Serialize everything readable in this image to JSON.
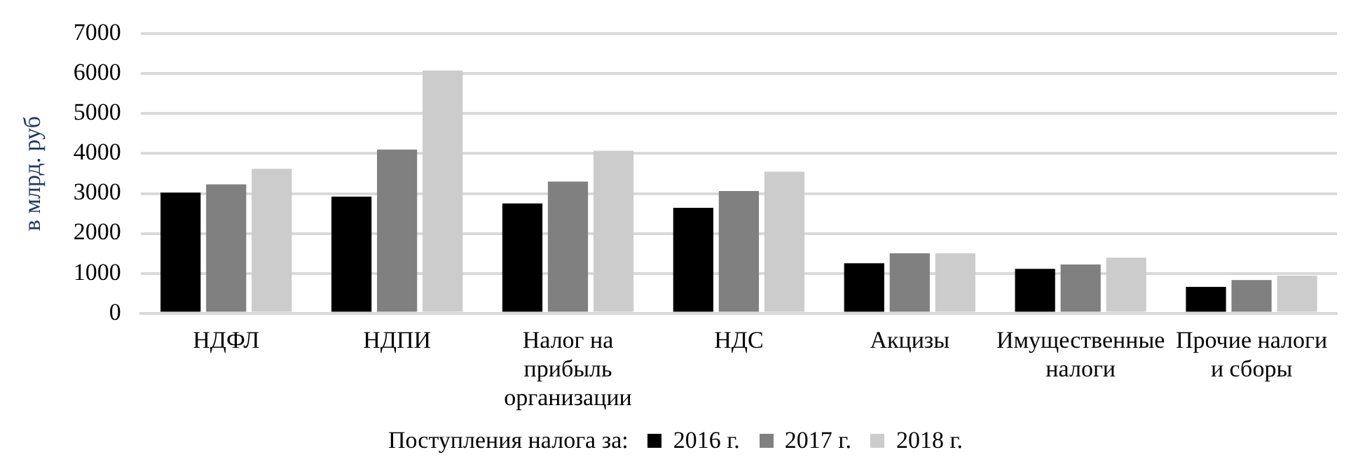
{
  "chart_data": {
    "type": "bar",
    "ylabel": "в млрд. руб",
    "legend_title": "Поступления налога за:",
    "legend": "bottom",
    "grid": "y",
    "categories": [
      "НДФЛ",
      "НДПИ",
      "Налог на\nприбыль\nорганизации",
      "НДС",
      "Акцизы",
      "Имущественные\nналоги",
      "Прочие налоги\nи сборы"
    ],
    "series": [
      {
        "name": "2016 г.",
        "color": "#000000",
        "values": [
          3020,
          2920,
          2750,
          2640,
          1250,
          1110,
          660
        ]
      },
      {
        "name": "2017 г.",
        "color": "#808080",
        "values": [
          3230,
          4100,
          3300,
          3060,
          1500,
          1220,
          830
        ]
      },
      {
        "name": "2018 г.",
        "color": "#cccccc",
        "values": [
          3620,
          6080,
          4070,
          3550,
          1500,
          1390,
          940
        ]
      }
    ],
    "ylim": [
      0,
      7000
    ],
    "yticks": [
      0,
      1000,
      2000,
      3000,
      4000,
      5000,
      6000,
      7000
    ]
  }
}
